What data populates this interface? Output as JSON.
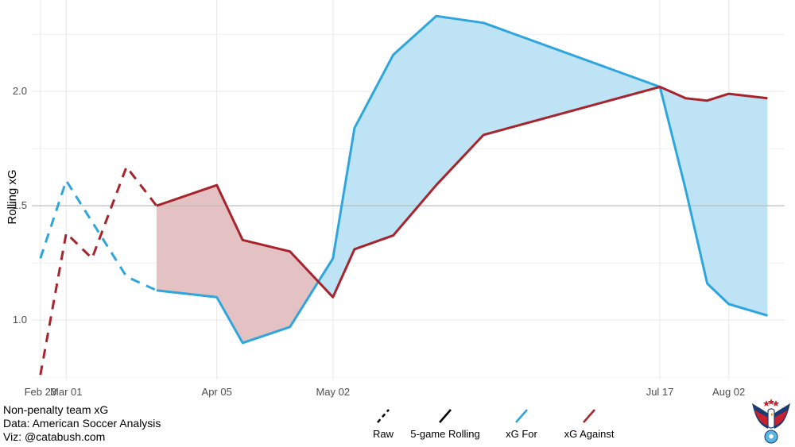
{
  "chart_data": {
    "type": "line",
    "ylabel": "Rolling xG",
    "ylim": [
      0.74,
      2.4
    ],
    "yticks": [
      1.0,
      1.5,
      2.0
    ],
    "ytick_labels": [
      "1.0",
      "1.5",
      "2.0"
    ],
    "xlim": [
      "2021-02-21",
      "2021-08-15"
    ],
    "xticks": [
      {
        "date": "2021-02-23",
        "label": "Feb 23"
      },
      {
        "date": "2021-03-01",
        "label": "Mar 01"
      },
      {
        "date": "2021-04-05",
        "label": "Apr 05"
      },
      {
        "date": "2021-05-02",
        "label": "May 02"
      },
      {
        "date": "2021-07-17",
        "label": "Jul 17"
      },
      {
        "date": "2021-08-02",
        "label": "Aug 02"
      }
    ],
    "reference_line": 1.5,
    "grid": true,
    "colors": {
      "for": "#2ea6dd",
      "against": "#a8242c",
      "fill_for": "#bde3f4",
      "fill_against": "#e4c2c4",
      "ref": "#bdbdbd",
      "grid": "#e8e8e8"
    },
    "series": [
      {
        "name": "xG For",
        "style": "raw",
        "x": [
          "2021-02-23",
          "2021-03-01",
          "2021-03-07",
          "2021-03-15",
          "2021-03-22"
        ],
        "values": [
          1.27,
          1.61,
          1.43,
          1.19,
          1.13
        ]
      },
      {
        "name": "xG Against",
        "style": "raw",
        "x": [
          "2021-02-23",
          "2021-03-01",
          "2021-03-07",
          "2021-03-15",
          "2021-03-22"
        ],
        "values": [
          0.76,
          1.38,
          1.27,
          1.67,
          1.5
        ]
      },
      {
        "name": "xG For",
        "style": "5-game Rolling",
        "x": [
          "2021-03-22",
          "2021-04-05",
          "2021-04-11",
          "2021-04-22",
          "2021-05-02",
          "2021-05-07",
          "2021-05-16",
          "2021-05-26",
          "2021-06-06",
          "2021-07-17",
          "2021-07-23",
          "2021-07-28",
          "2021-08-02",
          "2021-08-11"
        ],
        "values": [
          1.13,
          1.1,
          0.9,
          0.97,
          1.27,
          1.84,
          2.16,
          2.33,
          2.3,
          2.02,
          1.57,
          1.16,
          1.07,
          1.02
        ]
      },
      {
        "name": "xG Against",
        "style": "5-game Rolling",
        "x": [
          "2021-03-22",
          "2021-04-05",
          "2021-04-11",
          "2021-04-22",
          "2021-05-02",
          "2021-05-07",
          "2021-05-16",
          "2021-05-26",
          "2021-06-06",
          "2021-07-17",
          "2021-07-23",
          "2021-07-28",
          "2021-08-02",
          "2021-08-11"
        ],
        "values": [
          1.5,
          1.59,
          1.35,
          1.3,
          1.1,
          1.31,
          1.37,
          1.59,
          1.81,
          2.02,
          1.97,
          1.96,
          1.99,
          1.97
        ]
      }
    ],
    "legend": {
      "placement": "bottom",
      "items": [
        {
          "label": "Raw",
          "kind": "dashed",
          "color": "#000000"
        },
        {
          "label": "5-game Rolling",
          "kind": "solid",
          "color": "#000000"
        },
        {
          "label": "xG For",
          "kind": "solid",
          "color": "#2ea6dd"
        },
        {
          "label": "xG Against",
          "kind": "solid",
          "color": "#a8242c"
        }
      ]
    }
  },
  "caption": {
    "line1": "Non-penalty team xG",
    "line2": "Data: American Soccer Analysis",
    "line3": "Viz: @catabush.com"
  },
  "logo": {
    "icon": "eagle-crest-logo"
  }
}
